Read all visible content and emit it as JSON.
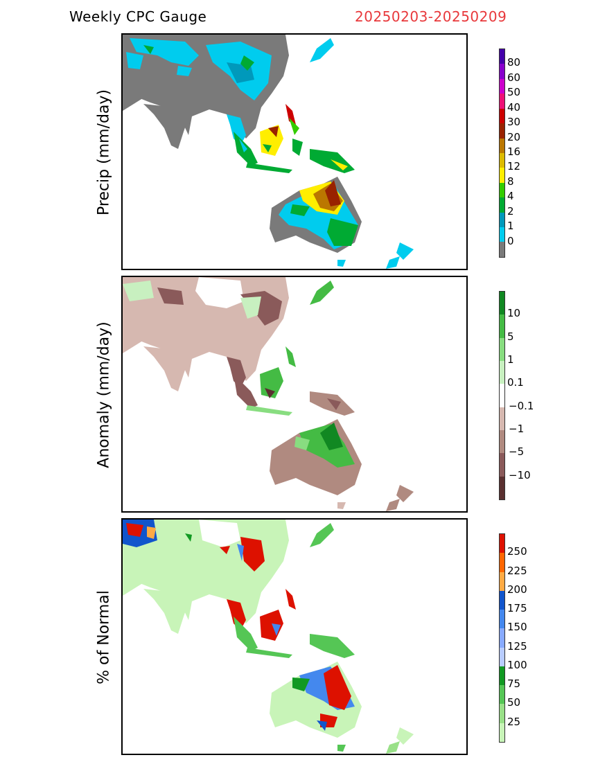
{
  "header": {
    "product_title": "Weekly CPC Gauge",
    "date_range": "20250203-20250209"
  },
  "panels": [
    {
      "id": "precip",
      "ylabel": "Precip (mm/day)",
      "colors": [
        "#7a7a7a",
        "#00ccee",
        "#0099bb",
        "#00aa33",
        "#33cc00",
        "#ffee00",
        "#ddbb00",
        "#bb7700",
        "#992200",
        "#cc0000",
        "#ee1177",
        "#cc00cc",
        "#8800cc",
        "#4400aa"
      ],
      "ticks": [
        "0",
        "1",
        "2",
        "4",
        "8",
        "12",
        "16",
        "20",
        "30",
        "40",
        "50",
        "60",
        "80"
      ]
    },
    {
      "id": "anomaly",
      "ylabel": "Anomaly (mm/day)",
      "colors": [
        "#5a3030",
        "#8a5a5a",
        "#b08a80",
        "#d6b8b0",
        "#ffffff",
        "#c8f0c0",
        "#88dd80",
        "#44bb44",
        "#118822"
      ],
      "ticks": [
        "10",
        "5",
        "1",
        "0.1",
        "−0.1",
        "−1",
        "−5",
        "−10"
      ]
    },
    {
      "id": "percent",
      "ylabel": "% of Normal",
      "colors": [
        "#c8f4b8",
        "#99e088",
        "#55c655",
        "#119922",
        "#b8ccff",
        "#88aaff",
        "#4488ee",
        "#1155cc",
        "#ffaa44",
        "#ff6600",
        "#dd1100"
      ],
      "ticks": [
        "25",
        "50",
        "75",
        "100",
        "125",
        "150",
        "175",
        "200",
        "225",
        "250"
      ]
    }
  ]
}
